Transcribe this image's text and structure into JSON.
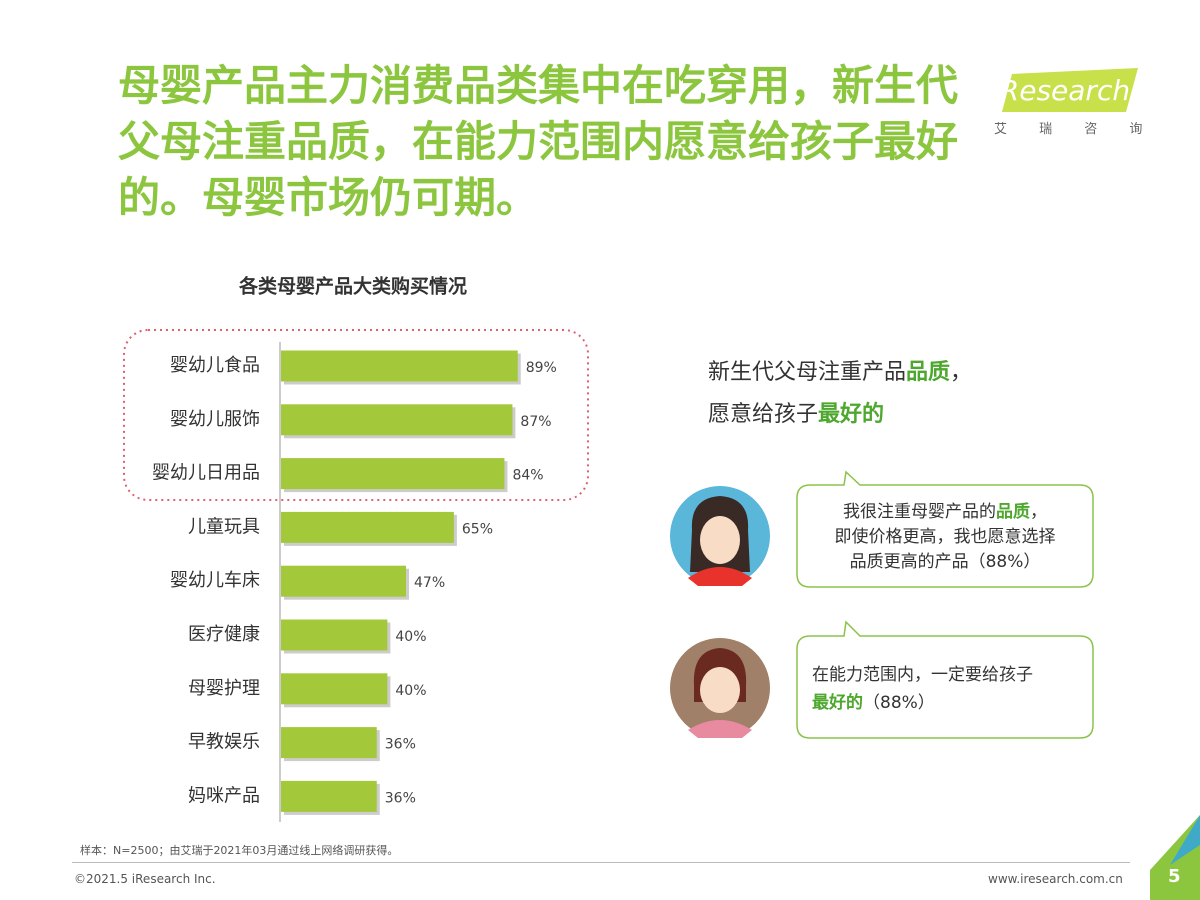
{
  "header": {
    "title": "母婴产品主力消费品类集中在吃穿用，新生代父母注重品质，在能力范围内愿意给孩子最好的。母婴市场仍可期。",
    "logo": "iResearch",
    "logo_sub": "艾 瑞 咨 询"
  },
  "chart_data": {
    "type": "hbar",
    "title": "各类母婴产品大类购买情况",
    "categories": [
      "婴幼儿食品",
      "婴幼儿服饰",
      "婴幼儿日用品",
      "儿童玩具",
      "婴幼儿车床",
      "医疗健康",
      "母婴护理",
      "早教娱乐",
      "妈咪产品"
    ],
    "values": [
      89,
      87,
      84,
      65,
      47,
      40,
      40,
      36,
      36
    ],
    "value_labels": [
      "89%",
      "87%",
      "84%",
      "65%",
      "47%",
      "40%",
      "40%",
      "36%",
      "36%"
    ],
    "color": "#a3c93a"
  },
  "callout": {
    "l1a": "新生代父母注重产品",
    "l1b": "品质",
    "l1c": "，",
    "l2a": "愿意给孩子",
    "l2b": "最好的"
  },
  "quotes": [
    {
      "a": "我很注重母婴产品的",
      "b": "品质",
      "c": "，",
      "d": "即使价格更高，我也愿意选择",
      "e": "品质更高的产品（88%）"
    },
    {
      "a": "在能力范围内，一定要给孩子",
      "b": "最好的",
      "c": "（88%）"
    }
  ],
  "footer": {
    "note": "样本：N=2500；由艾瑞于2021年03月通过线上网络调研获得。",
    "copyright": "©2021.5 iResearch Inc.",
    "url": "www.iresearch.com.cn",
    "page": "5"
  }
}
